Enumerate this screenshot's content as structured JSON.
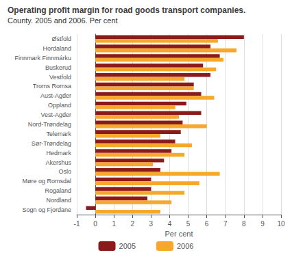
{
  "chart_data": {
    "type": "bar",
    "orientation": "horizontal",
    "title": "Operating profit margin for road goods transport companies.",
    "subtitle": "County. 2005 and 2006. Per cent",
    "categories": [
      "Østfold",
      "Hordaland",
      "Finnmark Finnmárku",
      "Buskerud",
      "Vestfold",
      "Troms Romsa",
      "Aust-Agder",
      "Oppland",
      "Vest-Agder",
      "Nord-Trøndelag",
      "Telemark",
      "Sør-Trøndelag",
      "Hedmark",
      "Akershus",
      "Oslo",
      "Møre og Romsdal",
      "Rogaland",
      "Nordland",
      "Sogn og Fjordane"
    ],
    "series": [
      {
        "name": "2005",
        "color": "#8B1A1A",
        "values": [
          8.0,
          6.2,
          6.7,
          5.8,
          6.2,
          5.3,
          5.7,
          4.9,
          5.7,
          4.7,
          4.6,
          4.3,
          4.1,
          3.7,
          3.5,
          3.0,
          3.0,
          2.8,
          -0.5
        ]
      },
      {
        "name": "2006",
        "color": "#F5A82A",
        "values": [
          6.6,
          7.6,
          6.9,
          6.5,
          4.8,
          5.3,
          6.4,
          4.3,
          4.5,
          6.0,
          3.5,
          5.2,
          4.8,
          3.1,
          6.7,
          5.6,
          4.8,
          4.1,
          3.5
        ]
      }
    ],
    "xlabel": "Per cent",
    "xlim": [
      -1,
      10
    ],
    "xticks": [
      -1,
      0,
      1,
      2,
      3,
      4,
      5,
      6,
      7,
      8,
      9,
      10
    ],
    "grid": true,
    "legend": "bottom"
  }
}
